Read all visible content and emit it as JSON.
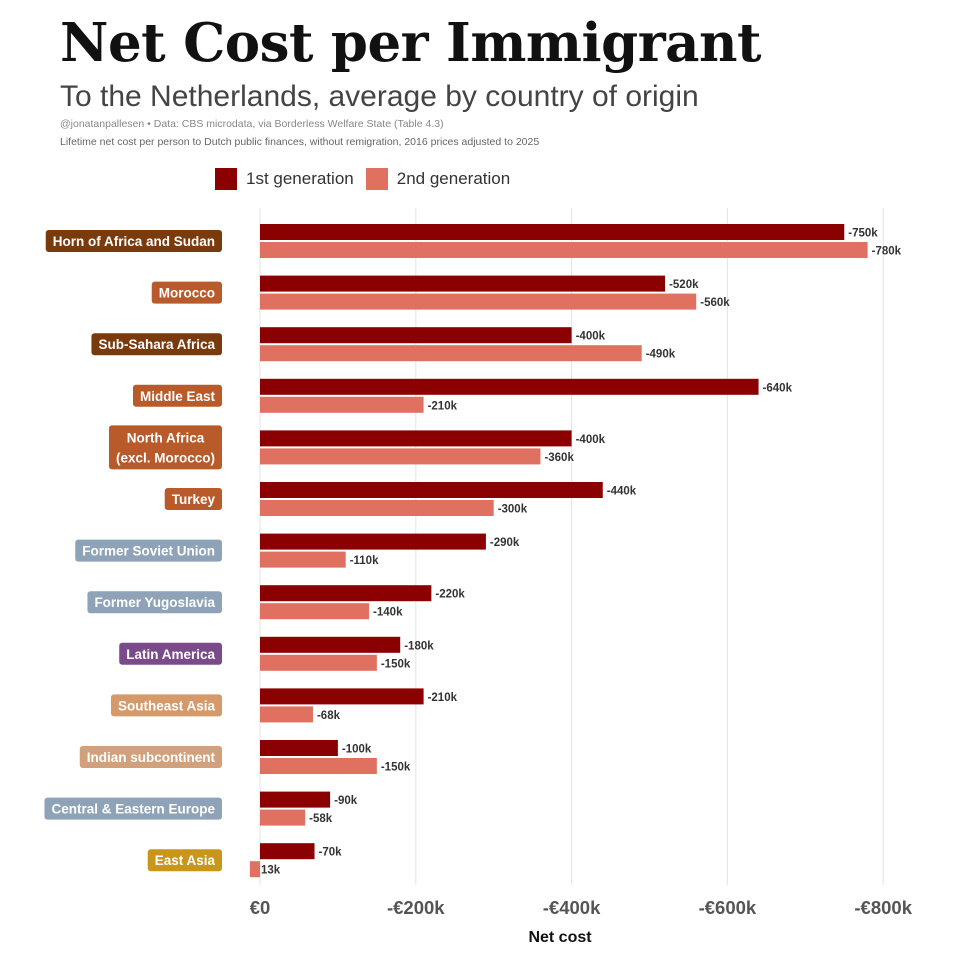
{
  "title": "Net Cost per Immigrant",
  "subtitle": "To the Netherlands, average by country of origin",
  "credit": "@jonatanpallesen • Data: CBS microdata, via Borderless Welfare State (Table 4.3)",
  "note": "Lifetime net cost per person to Dutch public finances, without remigration, 2016 prices adjusted to 2025",
  "chart_data": {
    "type": "bar",
    "orientation": "horizontal",
    "xlabel": "Net cost",
    "ylabel": "",
    "xlim": [
      0,
      -800000
    ],
    "x_ticks": [
      {
        "value": 0,
        "label": "€0"
      },
      {
        "value": -200000,
        "label": "-€200k"
      },
      {
        "value": -400000,
        "label": "-€400k"
      },
      {
        "value": -600000,
        "label": "-€600k"
      },
      {
        "value": -800000,
        "label": "-€800k"
      }
    ],
    "grid": true,
    "legend_position": "top",
    "categories": [
      {
        "lines": [
          "Horn of Africa and Sudan"
        ],
        "color": "#7a3a0c"
      },
      {
        "lines": [
          "Morocco"
        ],
        "color": "#b85a2a"
      },
      {
        "lines": [
          "Sub-Sahara Africa"
        ],
        "color": "#7a3a0c"
      },
      {
        "lines": [
          "Middle East"
        ],
        "color": "#b85a2a"
      },
      {
        "lines": [
          "North Africa",
          "(excl. Morocco)"
        ],
        "color": "#b85a2a"
      },
      {
        "lines": [
          "Turkey"
        ],
        "color": "#b85a2a"
      },
      {
        "lines": [
          "Former Soviet Union"
        ],
        "color": "#8fa3b8"
      },
      {
        "lines": [
          "Former Yugoslavia"
        ],
        "color": "#8fa3b8"
      },
      {
        "lines": [
          "Latin America"
        ],
        "color": "#7b4a8a"
      },
      {
        "lines": [
          "Southeast Asia"
        ],
        "color": "#d69a6a"
      },
      {
        "lines": [
          "Indian subcontinent"
        ],
        "color": "#d2a07a"
      },
      {
        "lines": [
          "Central & Eastern Europe"
        ],
        "color": "#8fa3b8"
      },
      {
        "lines": [
          "East Asia"
        ],
        "color": "#c9961a"
      }
    ],
    "series": [
      {
        "name": "1st generation",
        "color": "#8b0000",
        "values": [
          -750000,
          -520000,
          -400000,
          -640000,
          -400000,
          -440000,
          -290000,
          -220000,
          -180000,
          -210000,
          -100000,
          -90000,
          -70000
        ],
        "labels": [
          "-750k",
          "-520k",
          "-400k",
          "-640k",
          "-400k",
          "-440k",
          "-290k",
          "-220k",
          "-180k",
          "-210k",
          "-100k",
          "-90k",
          "-70k"
        ]
      },
      {
        "name": "2nd generation",
        "color": "#e07060",
        "values": [
          -780000,
          -560000,
          -490000,
          -210000,
          -360000,
          -300000,
          -110000,
          -140000,
          -150000,
          -68000,
          -150000,
          -58000,
          13000
        ],
        "labels": [
          "-780k",
          "-560k",
          "-490k",
          "-210k",
          "-360k",
          "-300k",
          "-110k",
          "-140k",
          "-150k",
          "-68k",
          "-150k",
          "-58k",
          "13k"
        ]
      }
    ]
  }
}
